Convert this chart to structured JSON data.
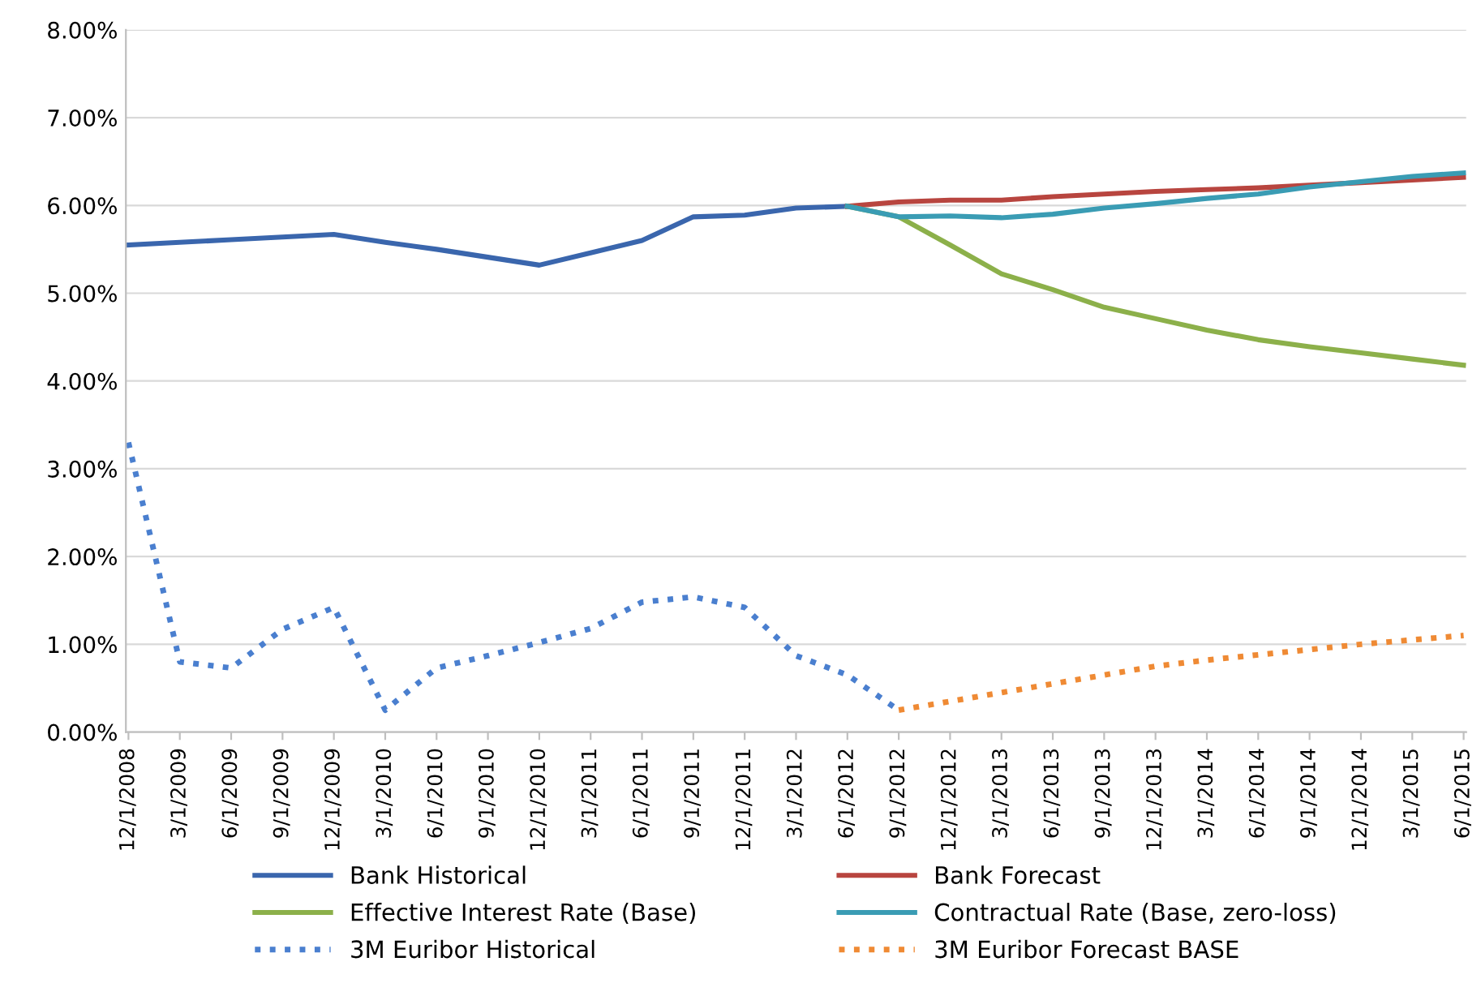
{
  "chart_data": {
    "type": "line",
    "categories": [
      "12/1/2008",
      "3/1/2009",
      "6/1/2009",
      "9/1/2009",
      "12/1/2009",
      "3/1/2010",
      "6/1/2010",
      "9/1/2010",
      "12/1/2010",
      "3/1/2011",
      "6/1/2011",
      "9/1/2011",
      "12/1/2011",
      "3/1/2012",
      "6/1/2012",
      "9/1/2012",
      "12/1/2012",
      "3/1/2013",
      "6/1/2013",
      "9/1/2013",
      "12/1/2013",
      "3/1/2014",
      "6/1/2014",
      "9/1/2014",
      "12/1/2014",
      "3/1/2015",
      "6/1/2015"
    ],
    "series": [
      {
        "name": "Bank Historical",
        "color": "#3a66ad",
        "line_style": "solid",
        "values": [
          5.55,
          5.58,
          5.61,
          5.64,
          5.67,
          5.58,
          5.5,
          5.41,
          5.32,
          5.46,
          5.6,
          5.87,
          5.89,
          5.97,
          5.99,
          null,
          null,
          null,
          null,
          null,
          null,
          null,
          null,
          null,
          null,
          null,
          null
        ]
      },
      {
        "name": "Bank Forecast",
        "color": "#b8453f",
        "line_style": "solid",
        "values": [
          null,
          null,
          null,
          null,
          null,
          null,
          null,
          null,
          null,
          null,
          null,
          null,
          null,
          null,
          5.99,
          6.04,
          6.06,
          6.06,
          6.1,
          6.13,
          6.16,
          6.18,
          6.2,
          6.23,
          6.26,
          6.29,
          6.32
        ]
      },
      {
        "name": "Effective Interest Rate (Base)",
        "color": "#8cb04a",
        "line_style": "solid",
        "values": [
          null,
          null,
          null,
          null,
          null,
          null,
          null,
          null,
          null,
          null,
          null,
          null,
          null,
          null,
          5.99,
          5.87,
          5.55,
          5.22,
          5.04,
          4.84,
          4.71,
          4.58,
          4.47,
          4.39,
          4.32,
          4.25,
          4.18
        ]
      },
      {
        "name": "Contractual Rate (Base, zero-loss)",
        "color": "#3a9cb4",
        "line_style": "solid",
        "values": [
          null,
          null,
          null,
          null,
          null,
          null,
          null,
          null,
          null,
          null,
          null,
          null,
          null,
          null,
          5.99,
          5.87,
          5.88,
          5.86,
          5.9,
          5.97,
          6.02,
          6.08,
          6.13,
          6.21,
          6.27,
          6.33,
          6.37
        ]
      },
      {
        "name": "3M Euribor Historical",
        "color": "#4a7fcf",
        "line_style": "dotted",
        "values": [
          3.3,
          0.8,
          0.73,
          1.17,
          1.42,
          0.25,
          0.73,
          0.87,
          1.02,
          1.18,
          1.48,
          1.54,
          1.42,
          0.87,
          0.65,
          0.25,
          null,
          null,
          null,
          null,
          null,
          null,
          null,
          null,
          null,
          null,
          null
        ]
      },
      {
        "name": "3M Euribor Forecast BASE",
        "color": "#ef8a34",
        "line_style": "dotted",
        "values": [
          null,
          null,
          null,
          null,
          null,
          null,
          null,
          null,
          null,
          null,
          null,
          null,
          null,
          null,
          null,
          0.25,
          0.35,
          0.45,
          0.55,
          0.65,
          0.75,
          0.82,
          0.88,
          0.94,
          1.0,
          1.05,
          1.1
        ]
      }
    ],
    "ylim": [
      0,
      8
    ],
    "yticks": [
      {
        "value": 0,
        "label": "0.00%"
      },
      {
        "value": 1,
        "label": "1.00%"
      },
      {
        "value": 2,
        "label": "2.00%"
      },
      {
        "value": 3,
        "label": "3.00%"
      },
      {
        "value": 4,
        "label": "4.00%"
      },
      {
        "value": 5,
        "label": "5.00%"
      },
      {
        "value": 6,
        "label": "6.00%"
      },
      {
        "value": 7,
        "label": "7.00%"
      },
      {
        "value": 8,
        "label": "8.00%"
      }
    ],
    "grid": "y",
    "legend": "bottom",
    "marker": "none"
  }
}
